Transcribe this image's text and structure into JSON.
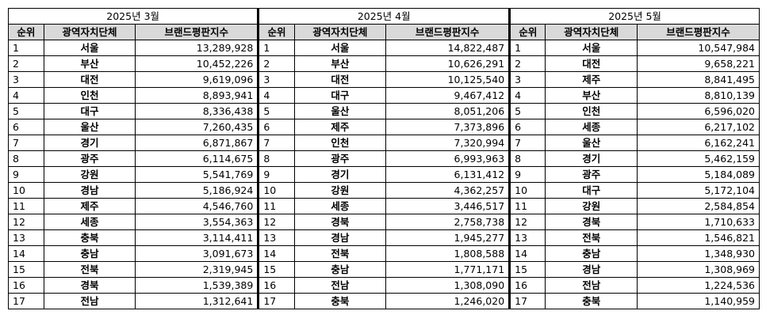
{
  "headers": {
    "rank": "순위",
    "region": "광역자치단체",
    "score": "브랜드평판지수"
  },
  "panels": [
    {
      "month": "2025년 3월",
      "rows": [
        {
          "rank": "1",
          "region": "서울",
          "score": "13,289,928"
        },
        {
          "rank": "2",
          "region": "부산",
          "score": "10,452,226"
        },
        {
          "rank": "3",
          "region": "대전",
          "score": "9,619,096"
        },
        {
          "rank": "4",
          "region": "인천",
          "score": "8,893,941"
        },
        {
          "rank": "5",
          "region": "대구",
          "score": "8,336,438"
        },
        {
          "rank": "6",
          "region": "울산",
          "score": "7,260,435"
        },
        {
          "rank": "7",
          "region": "경기",
          "score": "6,871,867"
        },
        {
          "rank": "8",
          "region": "광주",
          "score": "6,114,675"
        },
        {
          "rank": "9",
          "region": "강원",
          "score": "5,541,769"
        },
        {
          "rank": "10",
          "region": "경남",
          "score": "5,186,924"
        },
        {
          "rank": "11",
          "region": "제주",
          "score": "4,546,760"
        },
        {
          "rank": "12",
          "region": "세종",
          "score": "3,554,363"
        },
        {
          "rank": "13",
          "region": "충북",
          "score": "3,114,411"
        },
        {
          "rank": "14",
          "region": "충남",
          "score": "3,091,673"
        },
        {
          "rank": "15",
          "region": "전북",
          "score": "2,319,945"
        },
        {
          "rank": "16",
          "region": "경북",
          "score": "1,539,389"
        },
        {
          "rank": "17",
          "region": "전남",
          "score": "1,312,641"
        }
      ]
    },
    {
      "month": "2025년 4월",
      "rows": [
        {
          "rank": "1",
          "region": "서울",
          "score": "14,822,487"
        },
        {
          "rank": "2",
          "region": "부산",
          "score": "10,626,291"
        },
        {
          "rank": "3",
          "region": "대전",
          "score": "10,125,540"
        },
        {
          "rank": "4",
          "region": "대구",
          "score": "9,467,412"
        },
        {
          "rank": "5",
          "region": "울산",
          "score": "8,051,206"
        },
        {
          "rank": "6",
          "region": "제주",
          "score": "7,373,896"
        },
        {
          "rank": "7",
          "region": "인천",
          "score": "7,320,994"
        },
        {
          "rank": "8",
          "region": "광주",
          "score": "6,993,963"
        },
        {
          "rank": "9",
          "region": "경기",
          "score": "6,131,412"
        },
        {
          "rank": "10",
          "region": "강원",
          "score": "4,362,257"
        },
        {
          "rank": "11",
          "region": "세종",
          "score": "3,446,517"
        },
        {
          "rank": "12",
          "region": "경북",
          "score": "2,758,738"
        },
        {
          "rank": "13",
          "region": "경남",
          "score": "1,945,277"
        },
        {
          "rank": "14",
          "region": "전북",
          "score": "1,808,588"
        },
        {
          "rank": "15",
          "region": "충남",
          "score": "1,771,171"
        },
        {
          "rank": "16",
          "region": "전남",
          "score": "1,308,090"
        },
        {
          "rank": "17",
          "region": "충북",
          "score": "1,246,020"
        }
      ]
    },
    {
      "month": "2025년 5월",
      "rows": [
        {
          "rank": "1",
          "region": "서울",
          "score": "10,547,984"
        },
        {
          "rank": "2",
          "region": "대전",
          "score": "9,658,221"
        },
        {
          "rank": "3",
          "region": "제주",
          "score": "8,841,495"
        },
        {
          "rank": "4",
          "region": "부산",
          "score": "8,810,139"
        },
        {
          "rank": "5",
          "region": "인천",
          "score": "6,596,020"
        },
        {
          "rank": "6",
          "region": "세종",
          "score": "6,217,102"
        },
        {
          "rank": "7",
          "region": "울산",
          "score": "6,162,241"
        },
        {
          "rank": "8",
          "region": "경기",
          "score": "5,462,159"
        },
        {
          "rank": "9",
          "region": "광주",
          "score": "5,184,089"
        },
        {
          "rank": "10",
          "region": "대구",
          "score": "5,172,104"
        },
        {
          "rank": "11",
          "region": "강원",
          "score": "2,584,854"
        },
        {
          "rank": "12",
          "region": "경북",
          "score": "1,710,633"
        },
        {
          "rank": "13",
          "region": "전북",
          "score": "1,546,821"
        },
        {
          "rank": "14",
          "region": "충남",
          "score": "1,348,930"
        },
        {
          "rank": "15",
          "region": "경남",
          "score": "1,308,969"
        },
        {
          "rank": "16",
          "region": "전남",
          "score": "1,224,536"
        },
        {
          "rank": "17",
          "region": "충북",
          "score": "1,140,959"
        }
      ]
    }
  ]
}
